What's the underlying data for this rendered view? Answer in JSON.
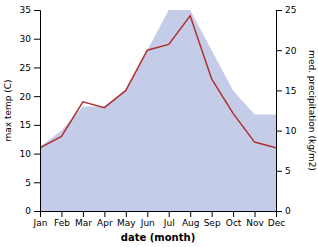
{
  "chart_data": {
    "type": "line",
    "categories": [
      "Jan",
      "Feb",
      "Mar",
      "Apr",
      "May",
      "Jun",
      "Jul",
      "Aug",
      "Sep",
      "Oct",
      "Nov",
      "Dec"
    ],
    "series": [
      {
        "type": "area",
        "axis": "y2",
        "color": "#c5cce8",
        "values": [
          8,
          10,
          13,
          13,
          15,
          20,
          25,
          25,
          20,
          15,
          12,
          12
        ]
      },
      {
        "type": "line",
        "color": "#b03030",
        "values": [
          11,
          13,
          19,
          18,
          21,
          28,
          29,
          34,
          23,
          17,
          12,
          11
        ]
      }
    ],
    "x_label": "date (month)",
    "y_label": "max temp (C)",
    "y2_label": "med. precipitation (kg/m2)",
    "ylim": [
      0,
      35
    ],
    "yticks": [
      0,
      5,
      10,
      15,
      20,
      25,
      30,
      35
    ],
    "y2lim": [
      0,
      25
    ],
    "y2ticks": [
      0,
      5,
      10,
      15,
      20,
      25
    ],
    "grid": false
  }
}
